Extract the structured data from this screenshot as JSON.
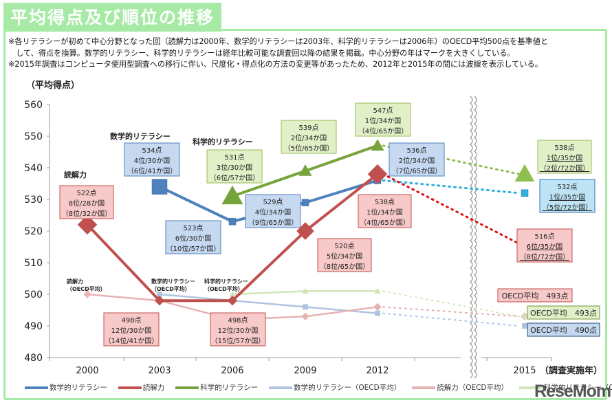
{
  "title": "平均得点及び順位の推移",
  "notes": [
    "※各リテラシーが初めて中心分野となった回（読解力は2000年、数学的リテラシーは2003年、科学的リテラシーは2006年）のOECD平均500点を基準値と",
    "　して、得点を換算。数学的リテラシー、科学的リテラシーは経年比較可能な調査回以降の結果を掲載。中心分野の年はマークを大きくしている。",
    "※2015年調査はコンピュータ使用型調査への移行に伴い、尺度化・得点化の方法の変更等があったため、2012年と2015年の間には波線を表示している。"
  ],
  "watermark": "ReseMom",
  "chart_data": {
    "type": "line",
    "title": "平均得点及び順位の推移",
    "ylabel": "（平均得点）",
    "xlabel": "（調査実施年）",
    "ylim": [
      480,
      560
    ],
    "yticks": [
      480,
      490,
      500,
      510,
      520,
      530,
      540,
      550,
      560
    ],
    "categories": [
      "2000",
      "2003",
      "2006",
      "2009",
      "2012",
      "2015"
    ],
    "break_between": [
      "2012",
      "2015"
    ],
    "grid": false,
    "legend_position": "bottom",
    "series": [
      {
        "name": "数学的リテラシー",
        "color": "#4f81bd",
        "values": [
          null,
          534,
          523,
          529,
          536,
          532
        ],
        "label": "数学的リテラシー"
      },
      {
        "name": "読解力",
        "color": "#c0504d",
        "values": [
          522,
          498,
          498,
          520,
          538,
          516
        ],
        "label": "読解力"
      },
      {
        "name": "科学的リテラシー",
        "color": "#77a33c",
        "values": [
          null,
          null,
          531,
          539,
          547,
          538
        ],
        "label": "科学的リテラシー"
      },
      {
        "name": "数学的リテラシー（OECD平均）",
        "color": "#b0c4e0",
        "values": [
          null,
          500,
          498,
          496,
          494,
          490
        ],
        "label": "数学的リテラシー\n（OECD平均）"
      },
      {
        "name": "読解力（OECD平均）",
        "color": "#e6b3b2",
        "values": [
          500,
          498,
          492,
          493,
          496,
          493
        ],
        "label": "読解力\n（OECD平均）"
      },
      {
        "name": "科学的リテラシー（OECD平均）",
        "color": "#d2e5b8",
        "values": [
          null,
          null,
          500,
          501,
          501,
          493
        ],
        "label": "科学的リテラシー\n（OECD平均）"
      }
    ],
    "annotations": [
      {
        "series": "読解力",
        "year": "2000",
        "lines": [
          "522点",
          "8位/28か国",
          "（8位/32か国）"
        ]
      },
      {
        "series": "読解力",
        "year": "2003",
        "lines": [
          "498点",
          "12位/30か国",
          "（14位/41か国）"
        ]
      },
      {
        "series": "読解力",
        "year": "2006",
        "lines": [
          "498点",
          "12位/30か国",
          "（15位/57か国）"
        ]
      },
      {
        "series": "読解力",
        "year": "2009",
        "lines": [
          "520点",
          "5位/34か国",
          "（8位/65か国）"
        ]
      },
      {
        "series": "読解力",
        "year": "2012",
        "lines": [
          "538点",
          "1位/34か国",
          "（4位/65か国）"
        ]
      },
      {
        "series": "読解力",
        "year": "2015",
        "lines": [
          "516点",
          "6位/35か国",
          "（8位/72か国）"
        ]
      },
      {
        "series": "数学的リテラシー",
        "year": "2003",
        "lines": [
          "534点",
          "4位/30か国",
          "（6位/41か国）"
        ]
      },
      {
        "series": "数学的リテラシー",
        "year": "2006",
        "lines": [
          "523点",
          "6位/30か国",
          "（10位/57か国）"
        ]
      },
      {
        "series": "数学的リテラシー",
        "year": "2009",
        "lines": [
          "529点",
          "4位/34か国",
          "（9位/65か国）"
        ]
      },
      {
        "series": "数学的リテラシー",
        "year": "2012",
        "lines": [
          "536点",
          "2位/34か国",
          "（7位/65か国）"
        ]
      },
      {
        "series": "数学的リテラシー",
        "year": "2015",
        "lines": [
          "532点",
          "1位/35か国",
          "（5位/72か国）"
        ]
      },
      {
        "series": "科学的リテラシー",
        "year": "2006",
        "lines": [
          "531点",
          "3位/30か国",
          "（6位/57か国）"
        ]
      },
      {
        "series": "科学的リテラシー",
        "year": "2009",
        "lines": [
          "539点",
          "2位/34か国",
          "（5位/65か国）"
        ]
      },
      {
        "series": "科学的リテラシー",
        "year": "2012",
        "lines": [
          "547点",
          "1位/34か国",
          "（4位/65か国）"
        ]
      },
      {
        "series": "科学的リテラシー",
        "year": "2015",
        "lines": [
          "538点",
          "1位/35か国",
          "（2位/72か国）"
        ]
      },
      {
        "series": "読解力（OECD平均）",
        "year": "2015",
        "lines": [
          "OECD平均　493点"
        ]
      },
      {
        "series": "科学的リテラシー（OECD平均）",
        "year": "2015",
        "lines": [
          "OECD平均　493点"
        ]
      },
      {
        "series": "数学的リテラシー（OECD平均）",
        "year": "2015",
        "lines": [
          "OECD平均　490点"
        ]
      }
    ]
  }
}
